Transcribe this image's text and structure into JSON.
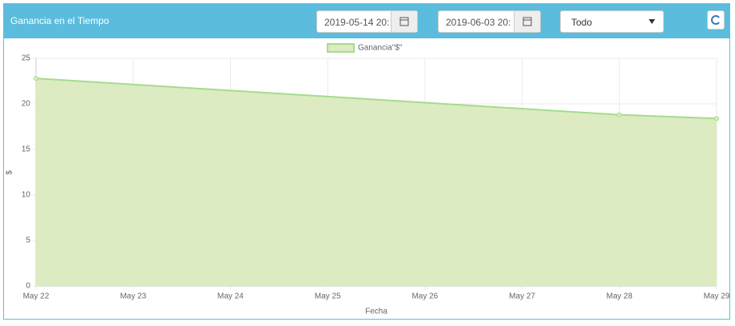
{
  "header": {
    "title": "Ganancia en el Tiempo",
    "date_from": "2019-05-14 20:",
    "date_to": "2019-06-03 20:",
    "filter": "Todo"
  },
  "chart_data": {
    "type": "area",
    "x_label": "Fecha",
    "y_label": "$",
    "xticks": [
      "May 22",
      "May 23",
      "May 24",
      "May 25",
      "May 26",
      "May 27",
      "May 28",
      "May 29"
    ],
    "x": [
      "May 22",
      "May 28",
      "May 29"
    ],
    "series": [
      {
        "name": "Ganancia\"$\"",
        "color": "#a6db8c",
        "area_color": "#dcebc2",
        "values": [
          22.8,
          18.8,
          18.4
        ]
      }
    ],
    "ylim": [
      0,
      25
    ],
    "yticks": [
      0,
      5,
      10,
      15,
      20,
      25
    ],
    "grid": true,
    "legend": "top"
  }
}
